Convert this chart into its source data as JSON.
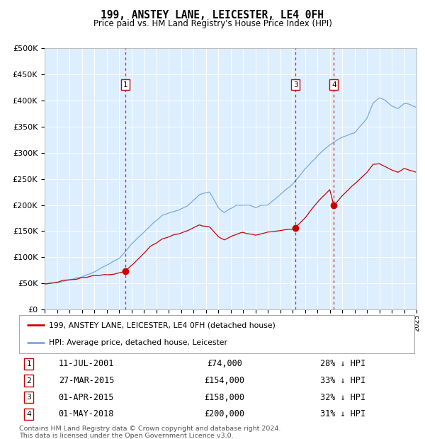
{
  "title": "199, ANSTEY LANE, LEICESTER, LE4 0FH",
  "subtitle": "Price paid vs. HM Land Registry's House Price Index (HPI)",
  "footnote1": "Contains HM Land Registry data © Crown copyright and database right 2024.",
  "footnote2": "This data is licensed under the Open Government Licence v3.0.",
  "legend_line1": "199, ANSTEY LANE, LEICESTER, LE4 0FH (detached house)",
  "legend_line2": "HPI: Average price, detached house, Leicester",
  "transactions": [
    {
      "num": 1,
      "date": "11-JUL-2001",
      "price": 74000,
      "pct": "28% ↓ HPI",
      "x": 2001.53
    },
    {
      "num": 2,
      "date": "27-MAR-2015",
      "price": 154000,
      "pct": "33% ↓ HPI",
      "x": 2015.23
    },
    {
      "num": 3,
      "date": "01-APR-2015",
      "price": 158000,
      "pct": "32% ↓ HPI",
      "x": 2015.25
    },
    {
      "num": 4,
      "date": "01-MAY-2018",
      "price": 200000,
      "pct": "31% ↓ HPI",
      "x": 2018.33
    }
  ],
  "vline_transactions": [
    1,
    3,
    4
  ],
  "hpi_color": "#7aaadd",
  "price_color": "#cc0000",
  "vline_color": "#cc0000",
  "background_color": "#ddeeff",
  "ylim": [
    0,
    500000
  ],
  "xlim": [
    1995.0,
    2025.0
  ],
  "marker_y": 430000,
  "box_label_color": "#cc0000"
}
